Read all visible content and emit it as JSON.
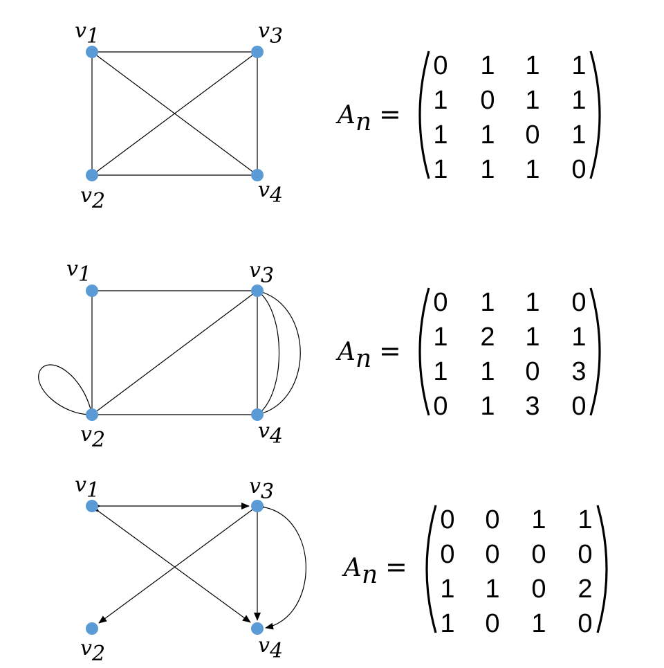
{
  "graphs": [
    {
      "vertices": [
        {
          "id": "v1",
          "label": "v",
          "sub": "1"
        },
        {
          "id": "v2",
          "label": "v",
          "sub": "2"
        },
        {
          "id": "v3",
          "label": "v",
          "sub": "3"
        },
        {
          "id": "v4",
          "label": "v",
          "sub": "4"
        }
      ],
      "edges": [
        [
          "v1",
          "v3"
        ],
        [
          "v1",
          "v2"
        ],
        [
          "v1",
          "v4"
        ],
        [
          "v2",
          "v3"
        ],
        [
          "v2",
          "v4"
        ],
        [
          "v3",
          "v4"
        ]
      ],
      "matrix_name": "A",
      "matrix_sub": "n",
      "equals": "=",
      "matrix": [
        [
          "0",
          "1",
          "1",
          "1"
        ],
        [
          "1",
          "0",
          "1",
          "1"
        ],
        [
          "1",
          "1",
          "0",
          "1"
        ],
        [
          "1",
          "1",
          "1",
          "0"
        ]
      ]
    },
    {
      "vertices": [
        {
          "id": "v1",
          "label": "v",
          "sub": "1"
        },
        {
          "id": "v2",
          "label": "v",
          "sub": "2"
        },
        {
          "id": "v3",
          "label": "v",
          "sub": "3"
        },
        {
          "id": "v4",
          "label": "v",
          "sub": "4"
        }
      ],
      "edges": [
        [
          "v1",
          "v3"
        ],
        [
          "v1",
          "v2"
        ],
        [
          "v2",
          "v3"
        ],
        [
          "v2",
          "v4"
        ],
        [
          "v3",
          "v4"
        ],
        [
          "v3",
          "v4"
        ],
        [
          "v3",
          "v4"
        ],
        [
          "v2",
          "v2"
        ]
      ],
      "matrix_name": "A",
      "matrix_sub": "n",
      "equals": "=",
      "matrix": [
        [
          "0",
          "1",
          "1",
          "0"
        ],
        [
          "1",
          "2",
          "1",
          "1"
        ],
        [
          "1",
          "1",
          "0",
          "3"
        ],
        [
          "0",
          "1",
          "3",
          "0"
        ]
      ]
    },
    {
      "vertices": [
        {
          "id": "v1",
          "label": "v",
          "sub": "1"
        },
        {
          "id": "v2",
          "label": "v",
          "sub": "2"
        },
        {
          "id": "v3",
          "label": "v",
          "sub": "3"
        },
        {
          "id": "v4",
          "label": "v",
          "sub": "4"
        }
      ],
      "edges": [
        [
          "v1",
          "v3"
        ],
        [
          "v3",
          "v1"
        ],
        [
          "v1",
          "v4"
        ],
        [
          "v4",
          "v1"
        ],
        [
          "v3",
          "v2"
        ],
        [
          "v3",
          "v4"
        ],
        [
          "v3",
          "v4"
        ],
        [
          "v4",
          "v3"
        ]
      ],
      "matrix_name": "A",
      "matrix_sub": "n",
      "equals": "=",
      "matrix": [
        [
          "0",
          "0",
          "1",
          "1"
        ],
        [
          "0",
          "0",
          "0",
          "0"
        ],
        [
          "1",
          "1",
          "0",
          "2"
        ],
        [
          "1",
          "0",
          "1",
          "0"
        ]
      ]
    }
  ],
  "colors": {
    "vertex": "#5b9bd5",
    "edge": "#000000"
  }
}
